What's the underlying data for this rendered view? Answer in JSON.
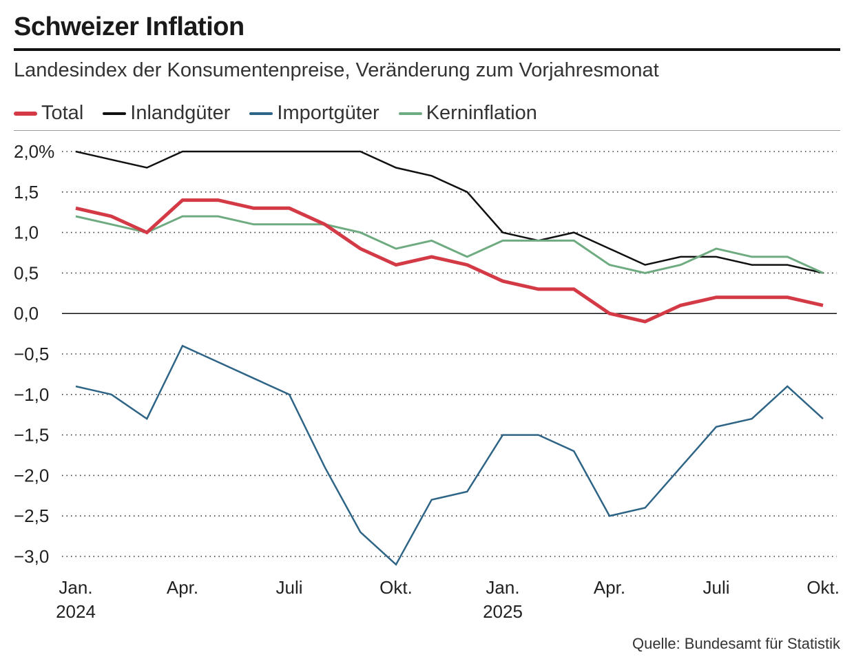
{
  "title": "Schweizer Inflation",
  "subtitle": "Landesindex der Konsumentenpreise, Veränderung zum Vorjahresmonat",
  "source": "Quelle: Bundesamt für Statistik",
  "colors": {
    "total": "#d33a45",
    "inland": "#111111",
    "import": "#2e6486",
    "kern": "#6fab80"
  },
  "chart_data": {
    "type": "line",
    "title": "Schweizer Inflation",
    "ylabel": "",
    "xlabel": "",
    "ylim": [
      -3.0,
      2.0
    ],
    "yticks": [
      2.0,
      1.5,
      1.0,
      0.5,
      0.0,
      -0.5,
      -1.0,
      -1.5,
      -2.0,
      -2.5,
      -3.0
    ],
    "ytick_labels": [
      "2,0%",
      "1,5",
      "1,0",
      "0,5",
      "0,0",
      "−0,5",
      "−1,0",
      "−1,5",
      "−2,0",
      "−2,5",
      "−3,0"
    ],
    "x": [
      "2024-01",
      "2024-02",
      "2024-03",
      "2024-04",
      "2024-05",
      "2024-06",
      "2024-07",
      "2024-08",
      "2024-09",
      "2024-10",
      "2024-11",
      "2024-12",
      "2025-01",
      "2025-02",
      "2025-03",
      "2025-04",
      "2025-05",
      "2025-06",
      "2025-07",
      "2025-08",
      "2025-09",
      "2025-10"
    ],
    "xticks": [
      {
        "index": 0,
        "label": "Jan.",
        "year": "2024"
      },
      {
        "index": 3,
        "label": "Apr.",
        "year": ""
      },
      {
        "index": 6,
        "label": "Juli",
        "year": ""
      },
      {
        "index": 9,
        "label": "Okt.",
        "year": ""
      },
      {
        "index": 12,
        "label": "Jan.",
        "year": "2025"
      },
      {
        "index": 15,
        "label": "Apr.",
        "year": ""
      },
      {
        "index": 18,
        "label": "Juli",
        "year": ""
      },
      {
        "index": 21,
        "label": "Okt.",
        "year": ""
      }
    ],
    "series": [
      {
        "key": "inland",
        "name": "Inlandgüter",
        "color": "#111111",
        "width": 2.5,
        "values": [
          2.0,
          1.9,
          1.8,
          2.0,
          2.0,
          2.0,
          2.0,
          2.0,
          2.0,
          1.8,
          1.7,
          1.5,
          1.0,
          0.9,
          1.0,
          0.8,
          0.6,
          0.7,
          0.7,
          0.6,
          0.6,
          0.5
        ]
      },
      {
        "key": "import",
        "name": "Importgüter",
        "color": "#2e6486",
        "width": 2.5,
        "values": [
          -0.9,
          -1.0,
          -1.3,
          -0.4,
          -0.6,
          -0.8,
          -1.0,
          -1.9,
          -2.7,
          -3.1,
          -2.3,
          -2.2,
          -1.5,
          -1.5,
          -1.7,
          -2.5,
          -2.4,
          -1.9,
          -1.4,
          -1.3,
          -0.9,
          -1.3
        ]
      },
      {
        "key": "kern",
        "name": "Kerninflation",
        "color": "#6fab80",
        "width": 3,
        "values": [
          1.2,
          1.1,
          1.0,
          1.2,
          1.2,
          1.1,
          1.1,
          1.1,
          1.0,
          0.8,
          0.9,
          0.7,
          0.9,
          0.9,
          0.9,
          0.6,
          0.5,
          0.6,
          0.8,
          0.7,
          0.7,
          0.5
        ]
      },
      {
        "key": "total",
        "name": "Total",
        "color": "#d33a45",
        "width": 5,
        "values": [
          1.3,
          1.2,
          1.0,
          1.4,
          1.4,
          1.3,
          1.3,
          1.1,
          0.8,
          0.6,
          0.7,
          0.6,
          0.4,
          0.3,
          0.3,
          0.0,
          -0.1,
          0.1,
          0.2,
          0.2,
          0.2,
          0.1
        ]
      }
    ],
    "legend": [
      {
        "name": "Total",
        "color": "#d33a45"
      },
      {
        "name": "Inlandgüter",
        "color": "#111111"
      },
      {
        "name": "Importgüter",
        "color": "#2e6486"
      },
      {
        "name": "Kerninflation",
        "color": "#6fab80"
      }
    ],
    "legend_position": "top-left",
    "grid": "dotted horizontal"
  }
}
